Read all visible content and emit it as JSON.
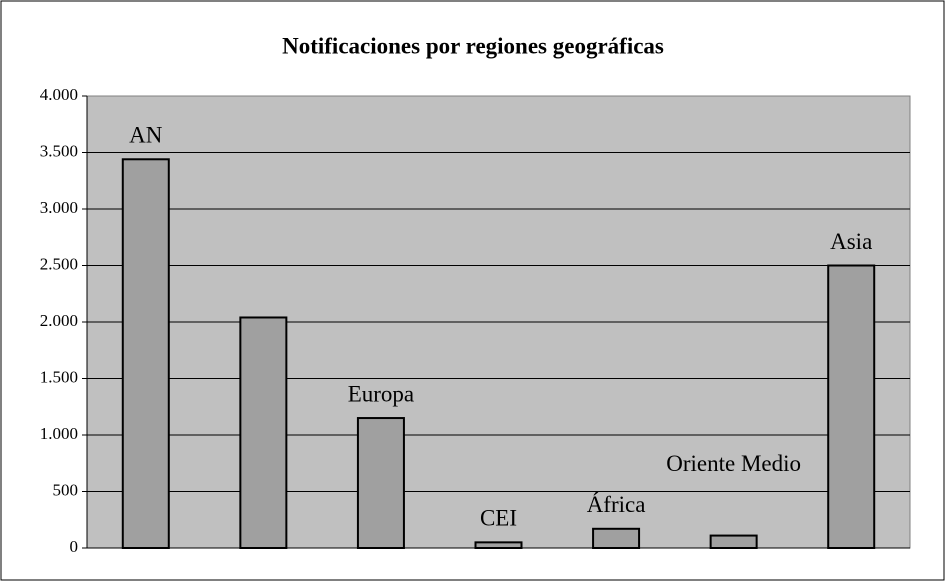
{
  "chart_data": {
    "type": "bar",
    "title": "Notificaciones por regiones geográficas",
    "categories": [
      "AN",
      null,
      "Europa",
      "CEI",
      "África",
      "Oriente Medio",
      "Asia"
    ],
    "values": [
      3440,
      2040,
      1150,
      50,
      170,
      110,
      2500
    ],
    "color": "#a0a0a0",
    "ylim": [
      0,
      4000
    ],
    "yticks": [
      0,
      500,
      {
        "value": 1000,
        "label": "1.000"
      },
      {
        "value": 1500,
        "label": "1.500"
      },
      {
        "value": 2000,
        "label": "2.000"
      },
      {
        "value": 2500,
        "label": "2.500"
      },
      {
        "value": 3000,
        "label": "3.000"
      },
      {
        "value": 3500,
        "label": "3.500"
      },
      {
        "value": 4000,
        "label": "4.000"
      }
    ],
    "grid": true
  }
}
